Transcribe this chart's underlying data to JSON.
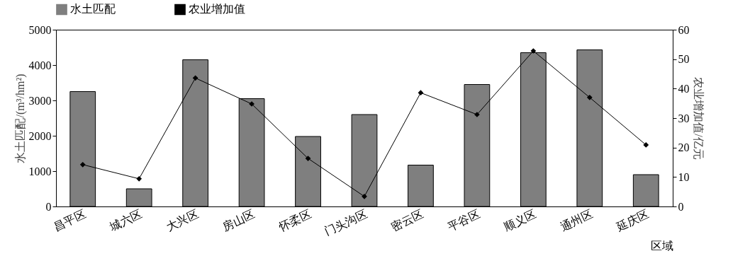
{
  "chart_data": {
    "type": "bar",
    "xlabel": "区域",
    "ylabel": "水土匹配/(m³/hm²)",
    "y2label": "农业增加值/亿元",
    "categories": [
      "昌平区",
      "城六区",
      "大兴区",
      "房山区",
      "怀柔区",
      "门头沟区",
      "密云区",
      "平谷区",
      "顺义区",
      "通州区",
      "延庆区"
    ],
    "series": [
      {
        "name": "水土匹配",
        "color": "#7f7f7f",
        "values": [
          3250,
          500,
          4150,
          3050,
          1980,
          2600,
          1170,
          3450,
          4350,
          4430,
          900
        ]
      },
      {
        "name": "农业增加值",
        "type": "line",
        "axis": "y2",
        "color": "#000000",
        "values": [
          14.2,
          9.4,
          43.6,
          34.8,
          16.3,
          3.4,
          38.6,
          31.2,
          52.8,
          37,
          20.9
        ]
      }
    ],
    "ylim": [
      0,
      5000
    ],
    "yticks": [
      0,
      1000,
      2000,
      3000,
      4000,
      5000
    ],
    "y2lim": [
      0,
      60
    ],
    "y2ticks": [
      0,
      10,
      20,
      30,
      40,
      50,
      60
    ],
    "grid": false,
    "legend": "top",
    "marker": "diamond",
    "line_style": "solid"
  }
}
